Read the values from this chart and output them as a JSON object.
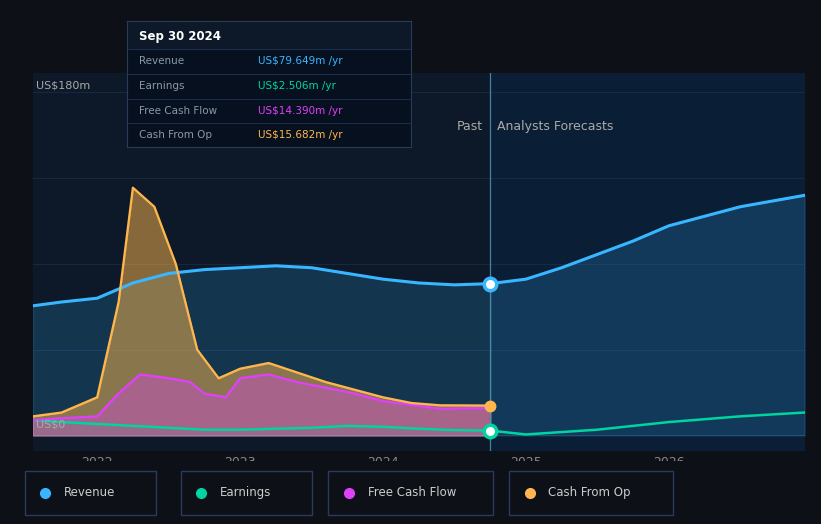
{
  "bg_color": "#0d1117",
  "plot_bg_color": "#0d1928",
  "forecast_bg_color": "#0a1e35",
  "grid_color": "#1a3050",
  "divider_x": 2024.75,
  "past_label": "Past",
  "forecast_label": "Analysts Forecasts",
  "ylabel": "US$180m",
  "ylabel2": "US$0",
  "x_ticks": [
    2022,
    2023,
    2024,
    2025,
    2026
  ],
  "xlim": [
    2021.55,
    2026.95
  ],
  "ylim": [
    -8,
    190
  ],
  "revenue_color": "#38b6ff",
  "earnings_color": "#00d4a0",
  "fcf_color": "#e040fb",
  "cashop_color": "#ffb74d",
  "revenue": {
    "x": [
      2021.55,
      2021.75,
      2022.0,
      2022.25,
      2022.5,
      2022.75,
      2023.0,
      2023.25,
      2023.5,
      2023.75,
      2024.0,
      2024.25,
      2024.5,
      2024.75,
      2025.0,
      2025.25,
      2025.5,
      2025.75,
      2026.0,
      2026.5,
      2026.95
    ],
    "y": [
      68,
      70,
      72,
      80,
      85,
      87,
      88,
      89,
      88,
      85,
      82,
      80,
      79,
      79.649,
      82,
      88,
      95,
      102,
      110,
      120,
      126
    ]
  },
  "earnings": {
    "x": [
      2021.55,
      2021.75,
      2022.0,
      2022.25,
      2022.5,
      2022.75,
      2023.0,
      2023.25,
      2023.5,
      2023.75,
      2024.0,
      2024.25,
      2024.5,
      2024.75,
      2025.0,
      2025.5,
      2026.0,
      2026.5,
      2026.95
    ],
    "y": [
      8,
      7,
      6,
      5,
      4,
      3,
      3,
      3.5,
      4,
      5,
      4.5,
      3.5,
      2.8,
      2.506,
      0.5,
      3,
      7,
      10,
      12
    ]
  },
  "fcf": {
    "x": [
      2021.55,
      2021.75,
      2022.0,
      2022.15,
      2022.3,
      2022.5,
      2022.65,
      2022.75,
      2022.9,
      2023.0,
      2023.2,
      2023.4,
      2023.6,
      2023.8,
      2024.0,
      2024.2,
      2024.4,
      2024.75
    ],
    "y": [
      8,
      9,
      10,
      22,
      32,
      30,
      28,
      22,
      20,
      30,
      32,
      28,
      25,
      22,
      18,
      16,
      14,
      14.39
    ]
  },
  "cashop": {
    "x": [
      2021.55,
      2021.75,
      2022.0,
      2022.15,
      2022.25,
      2022.4,
      2022.55,
      2022.7,
      2022.85,
      2023.0,
      2023.2,
      2023.4,
      2023.6,
      2023.8,
      2024.0,
      2024.2,
      2024.4,
      2024.75
    ],
    "y": [
      10,
      12,
      20,
      70,
      130,
      120,
      90,
      45,
      30,
      35,
      38,
      33,
      28,
      24,
      20,
      17,
      15.8,
      15.682
    ]
  },
  "tooltip": {
    "date": "Sep 30 2024",
    "revenue_val": "US$79.649m",
    "earnings_val": "US$2.506m",
    "fcf_val": "US$14.390m",
    "cashop_val": "US$15.682m",
    "revenue_color": "#38b6ff",
    "earnings_color": "#00d4a0",
    "fcf_color": "#e040fb",
    "cashop_color": "#ffb74d"
  },
  "dot_x": 2024.75,
  "revenue_dot_y": 79.649,
  "earnings_dot_y": 2.506,
  "cashop_dot_y": 15.682,
  "legend_items": [
    {
      "label": "Revenue",
      "color": "#38b6ff"
    },
    {
      "label": "Earnings",
      "color": "#00d4a0"
    },
    {
      "label": "Free Cash Flow",
      "color": "#e040fb"
    },
    {
      "label": "Cash From Op",
      "color": "#ffb74d"
    }
  ]
}
